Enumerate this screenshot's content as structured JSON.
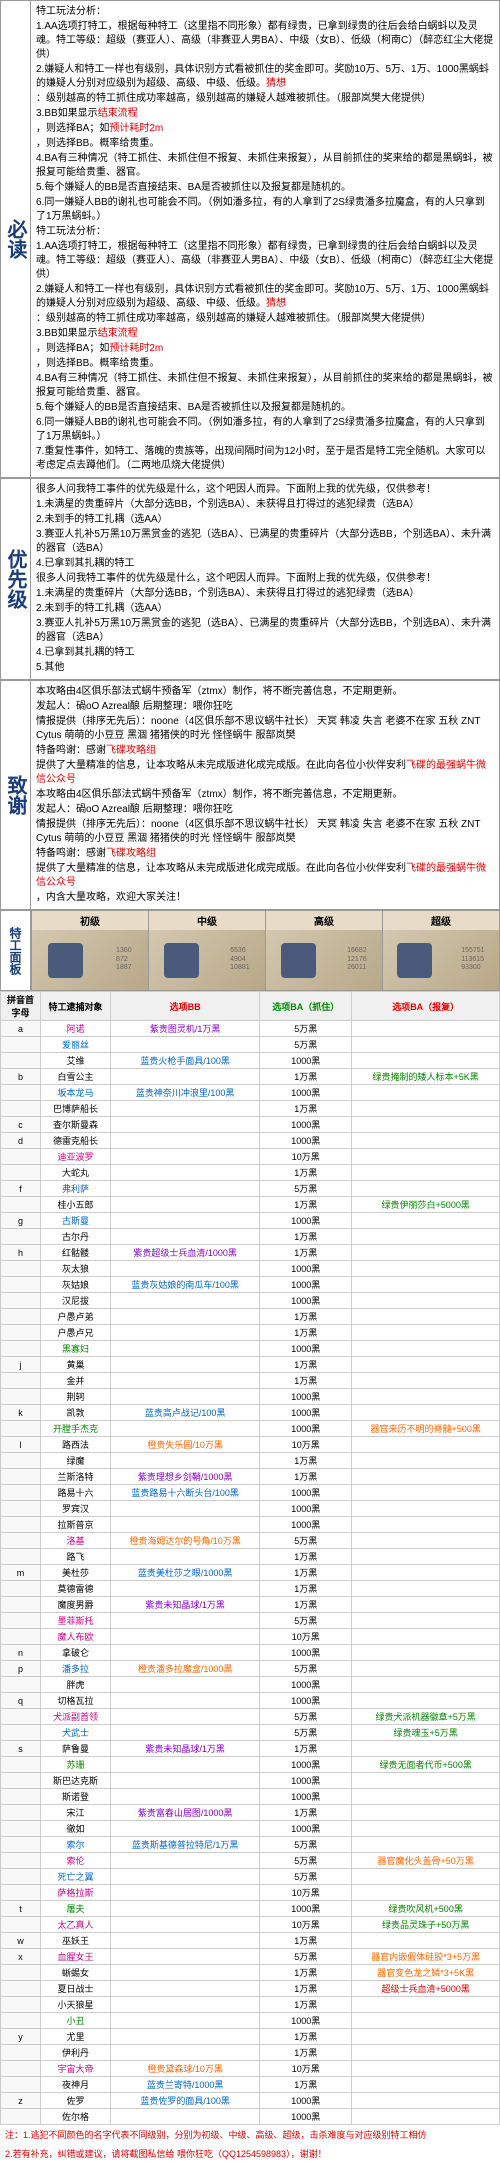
{
  "sections": {
    "bidu": {
      "title": "必读",
      "lines": [
        {
          "t": "特工玩法分析：",
          "c": ""
        },
        {
          "t": "1.AA选项打特工，根据每种特工（这里指不同形象）都有绿贵，已拿到绿贵的往后会给白蜗蚪以及灵魂。特工等级：超级（赛亚人）、高级（非赛亚人男BA）、中级（女B）、低级（柯南C）（醉恋红尘大佬提供）",
          "c": ""
        },
        {
          "t": "2.嫌疑人和特工一样也有级别，具体识别方式看被抓住的奖金即可。奖励10万、5万、1万、1000黑蜗蚪的嫌疑人分别对应级别为超级、高级、中级、低级。",
          "c": ""
        },
        {
          "t": "猜想",
          "c": "red",
          "inline": true
        },
        {
          "t": "：级别越高的特工抓住成功率越高，级别越高的嫌疑人越难被抓住。（服部岚樊大佬提供）",
          "c": ""
        },
        {
          "t": "3.BB如果显示",
          "c": ""
        },
        {
          "t": "结束流程",
          "c": "red",
          "inline": true
        },
        {
          "t": "，则选择BA；如",
          "c": ""
        },
        {
          "t": "预计耗时2m",
          "c": "red",
          "inline": true
        },
        {
          "t": "，则选择BB。概率给贵重。",
          "c": ""
        },
        {
          "t": "4.BA有三种情况（特工抓住、未抓住但不报复、未抓住来报复），从目前抓住的奖来给的都是黑蜗蚪，被报复可能给贵重、器官。",
          "c": ""
        },
        {
          "t": "5.每个嫌疑人的BB是否直接结束、BA是否被抓住以及报复都是随机的。",
          "c": ""
        },
        {
          "t": "6.同一嫌疑人BB的谢礼也可能会不同。（例如潘多拉，有的人拿到了2S绿贵潘多拉魔盒，有的人只拿到了1万黑蜗蚪。）",
          "c": ""
        },
        {
          "t": "7.重复性事件，如特工、落魄的贵族等，出现间隔时间为12小时，至于是否是特工完全随机。大家可以考虑定点去蹲他们。（二两地瓜烧大佬提供）",
          "c": ""
        }
      ]
    },
    "youxianji": {
      "title": "优先级",
      "lines": [
        {
          "t": "很多人问我特工事件的优先级是什么，这个吧因人而异。下面附上我的优先级，仅供参考！",
          "c": ""
        },
        {
          "t": "1.未满星的贵重碎片（大部分选BB，个别选BA）、未获得且打得过的逃犯绿贵（选BA）",
          "c": ""
        },
        {
          "t": "2.未到手的特工扎耦（选AA）",
          "c": ""
        },
        {
          "t": "3.赛亚人扎补5万黑10万黑赏金的逃犯（选BA）、已满星的贵重碎片（大部分选BB，个别选BA）、未升满的器官（选BA）",
          "c": ""
        },
        {
          "t": "4.已拿到其扎耦的特工",
          "c": ""
        },
        {
          "t": "5.其他",
          "c": ""
        }
      ]
    },
    "zhixie": {
      "title": "致谢",
      "lines": [
        {
          "t": "本攻略由4区俱乐部法式蜗牛预备军（ztmx）制作，将不断完善信息，不定期更新。",
          "c": ""
        },
        {
          "t": "发起人：碢oO Azreal酿        后期整理：喂你狂吃",
          "c": ""
        },
        {
          "t": "情报提供（排序无先后）：noone（4区俱乐部不思议蜗牛社长） 天冥 韩凌 失言 老婆不在家 五秋 ZNT Cytus 萌萌的小豆豆 黑涸 猪猪侠的时光 怪怪蜗牛 服部岚樊",
          "c": ""
        },
        {
          "t": "特备鸣谢：感谢",
          "c": ""
        },
        {
          "t": "飞碟攻略组",
          "c": "red",
          "inline": true
        },
        {
          "t": "提供了大量精准的信息，让本攻略从未完成版进化成完成版。在此向各位小伙伴安利",
          "c": ""
        },
        {
          "t": "飞碟的最强蜗牛微信公众号",
          "c": "red",
          "inline": true
        },
        {
          "t": "，内含大量攻略，欢迎大家关注！",
          "c": ""
        }
      ]
    }
  },
  "panel": {
    "title": "特工面板",
    "levels": [
      "初级",
      "中级",
      "高级",
      "超级"
    ],
    "stats": [
      [
        "1360",
        "872",
        "1887"
      ],
      [
        "6536",
        "4904",
        "10881"
      ],
      [
        "16682",
        "12176",
        "26011"
      ],
      [
        "155751",
        "113615",
        "93300"
      ]
    ]
  },
  "table": {
    "headers": [
      "拼音首字母",
      "特工逮捕对象",
      "选项BB",
      "选项BA（抓住）",
      "选项BA（报复）"
    ],
    "headerColors": [
      "",
      "",
      "red",
      "green",
      "red"
    ],
    "rows": [
      {
        "g": "a",
        "n": "阿诺",
        "nc": "pink",
        "bb": "紫贵图灵机/1万黑",
        "bbc": "purple",
        "ba1": "5万黑",
        "ba2": ""
      },
      {
        "g": "",
        "n": "爱丽丝",
        "nc": "blue",
        "bb": "",
        "ba1": "5万黑",
        "ba2": ""
      },
      {
        "g": "",
        "n": "艾维",
        "nc": "",
        "bb": "蓝贵火枪手面具/100黑",
        "bbc": "blue",
        "ba1": "1000黑",
        "ba2": ""
      },
      {
        "g": "b",
        "n": "白雪公主",
        "nc": "",
        "bb": "",
        "ba1": "1万黑",
        "ba2": "绿贵掩制的矮人标本+5K黑",
        "ba2c": "green"
      },
      {
        "g": "",
        "n": "坂本龙马",
        "nc": "blue",
        "bb": "蓝贵神奈川冲浪里/100黑",
        "bbc": "blue",
        "ba1": "1000黑",
        "ba2": ""
      },
      {
        "g": "",
        "n": "巴博萨船长",
        "nc": "",
        "bb": "",
        "ba1": "1万黑",
        "ba2": ""
      },
      {
        "g": "c",
        "n": "查尔斯曼森",
        "nc": "",
        "bb": "",
        "ba1": "1000黑",
        "ba2": ""
      },
      {
        "g": "d",
        "n": "德雷克船长",
        "nc": "",
        "bb": "",
        "ba1": "1000黑",
        "ba2": ""
      },
      {
        "g": "",
        "n": "迪亚波罗",
        "nc": "pink",
        "bb": "",
        "ba1": "10万黑",
        "ba2": ""
      },
      {
        "g": "",
        "n": "大蛇丸",
        "nc": "",
        "bb": "",
        "ba1": "1万黑",
        "ba2": ""
      },
      {
        "g": "f",
        "n": "弗利萨",
        "nc": "blue",
        "bb": "",
        "ba1": "5万黑",
        "ba2": ""
      },
      {
        "g": "",
        "n": "桂小五郎",
        "nc": "",
        "bb": "",
        "ba1": "1万黑",
        "ba2": "绿贵伊丽莎白+5000黑",
        "ba2c": "green"
      },
      {
        "g": "g",
        "n": "古斯曼",
        "nc": "blue",
        "bb": "",
        "ba1": "1000黑",
        "ba2": ""
      },
      {
        "g": "",
        "n": "古尔丹",
        "nc": "",
        "bb": "",
        "ba1": "1万黑",
        "ba2": ""
      },
      {
        "g": "h",
        "n": "红骷髅",
        "nc": "",
        "bb": "紫贵超级士兵血清/1000黑",
        "bbc": "purple",
        "ba1": "1万黑",
        "ba2": ""
      },
      {
        "g": "",
        "n": "灰太狼",
        "nc": "",
        "bb": "",
        "ba1": "1000黑",
        "ba2": ""
      },
      {
        "g": "",
        "n": "灰姑娘",
        "nc": "",
        "bb": "蓝贵灰姑娘的南瓜车/100黑",
        "bbc": "blue",
        "ba1": "1000黑",
        "ba2": ""
      },
      {
        "g": "",
        "n": "汉尼拔",
        "nc": "",
        "bb": "",
        "ba1": "1000黑",
        "ba2": ""
      },
      {
        "g": "",
        "n": "户愚卢弟",
        "nc": "",
        "bb": "",
        "ba1": "1万黑",
        "ba2": ""
      },
      {
        "g": "",
        "n": "户愚卢兄",
        "nc": "",
        "bb": "",
        "ba1": "1万黑",
        "ba2": ""
      },
      {
        "g": "",
        "n": "黑寡妇",
        "nc": "green",
        "bb": "",
        "ba1": "1000黑",
        "ba2": ""
      },
      {
        "g": "j",
        "n": "黄巢",
        "nc": "",
        "bb": "",
        "ba1": "1万黑",
        "ba2": ""
      },
      {
        "g": "",
        "n": "金并",
        "nc": "",
        "bb": "",
        "ba1": "1万黑",
        "ba2": ""
      },
      {
        "g": "",
        "n": "荆轲",
        "nc": "",
        "bb": "",
        "ba1": "1000黑",
        "ba2": ""
      },
      {
        "g": "k",
        "n": "凯敦",
        "nc": "",
        "bb": "蓝贵高卢战记/100黑",
        "bbc": "blue",
        "ba1": "1000黑",
        "ba2": ""
      },
      {
        "g": "",
        "n": "开膛手杰克",
        "nc": "green",
        "bb": "",
        "ba1": "1000黑",
        "ba2": "器官来历不明的脊髓+500黑",
        "ba2c": "orange"
      },
      {
        "g": "l",
        "n": "路西法",
        "nc": "",
        "bb": "橙贵失乐园/10万黑",
        "bbc": "orange",
        "ba1": "10万黑",
        "ba2": ""
      },
      {
        "g": "",
        "n": "绿魔",
        "nc": "",
        "bb": "",
        "ba1": "1万黑",
        "ba2": ""
      },
      {
        "g": "",
        "n": "兰斯洛特",
        "nc": "",
        "bb": "紫贵理想乡剑鞘/1000黑",
        "bbc": "purple",
        "ba1": "1万黑",
        "ba2": ""
      },
      {
        "g": "",
        "n": "路易十六",
        "nc": "",
        "bb": "蓝贵路易十六断头台/100黑",
        "bbc": "blue",
        "ba1": "1000黑",
        "ba2": ""
      },
      {
        "g": "",
        "n": "罗宾汉",
        "nc": "",
        "bb": "",
        "ba1": "1000黑",
        "ba2": ""
      },
      {
        "g": "",
        "n": "拉斯普京",
        "nc": "",
        "bb": "",
        "ba1": "1000黑",
        "ba2": ""
      },
      {
        "g": "",
        "n": "洛基",
        "nc": "pink",
        "bb": "橙贵海姆达尔的号角/10万黑",
        "bbc": "orange",
        "ba1": "5万黑",
        "ba2": ""
      },
      {
        "g": "",
        "n": "路飞",
        "nc": "",
        "bb": "",
        "ba1": "1万黑",
        "ba2": ""
      },
      {
        "g": "m",
        "n": "美杜莎",
        "nc": "",
        "bb": "蓝贵美杜莎之眼/1000黑",
        "bbc": "blue",
        "ba1": "1万黑",
        "ba2": ""
      },
      {
        "g": "",
        "n": "莫德雷德",
        "nc": "",
        "bb": "",
        "ba1": "1万黑",
        "ba2": ""
      },
      {
        "g": "",
        "n": "魔度男爵",
        "nc": "",
        "bb": "紫贵未知晶球/1万黑",
        "bbc": "purple",
        "ba1": "1万黑",
        "ba2": ""
      },
      {
        "g": "",
        "n": "墨菲斯托",
        "nc": "pink",
        "bb": "",
        "ba1": "5万黑",
        "ba2": ""
      },
      {
        "g": "",
        "n": "魔人布欧",
        "nc": "pink",
        "bb": "",
        "ba1": "10万黑",
        "ba2": ""
      },
      {
        "g": "n",
        "n": "拿破仑",
        "nc": "",
        "bb": "",
        "ba1": "1000黑",
        "ba2": ""
      },
      {
        "g": "p",
        "n": "潘多拉",
        "nc": "blue",
        "bb": "橙贵潘多拉魔盒/1000黑",
        "bbc": "orange",
        "ba1": "5万黑",
        "ba2": ""
      },
      {
        "g": "",
        "n": "胖虎",
        "nc": "",
        "bb": "",
        "ba1": "1000黑",
        "ba2": ""
      },
      {
        "g": "q",
        "n": "切格瓦拉",
        "nc": "",
        "bb": "",
        "ba1": "1000黑",
        "ba2": ""
      },
      {
        "g": "",
        "n": "犬派副首领",
        "nc": "pink",
        "bb": "",
        "ba1": "5万黑",
        "ba2": "绿贵犬派机器徽章+5万黑",
        "ba2c": "green"
      },
      {
        "g": "",
        "n": "犬武士",
        "nc": "blue",
        "bb": "",
        "ba1": "5万黑",
        "ba2": "绿贵魂玉+5万黑",
        "ba2c": "green"
      },
      {
        "g": "s",
        "n": "萨鲁曼",
        "nc": "",
        "bb": "紫贵未知晶球/1万黑",
        "bbc": "purple",
        "ba1": "1万黑",
        "ba2": ""
      },
      {
        "g": "",
        "n": "苏珊",
        "nc": "green",
        "bb": "",
        "ba1": "1000黑",
        "ba2": "绿贵无面者代币+500黑",
        "ba2c": "green"
      },
      {
        "g": "",
        "n": "斯巴达克斯",
        "nc": "",
        "bb": "",
        "ba1": "1000黑",
        "ba2": ""
      },
      {
        "g": "",
        "n": "斯诺登",
        "nc": "",
        "bb": "",
        "ba1": "1000黑",
        "ba2": ""
      },
      {
        "g": "",
        "n": "宋江",
        "nc": "",
        "bb": "紫贵富春山居图/1000黑",
        "bbc": "purple",
        "ba1": "1万黑",
        "ba2": ""
      },
      {
        "g": "",
        "n": "徹如",
        "nc": "",
        "bb": "",
        "ba1": "1000黑",
        "ba2": ""
      },
      {
        "g": "",
        "n": "索尔",
        "nc": "blue",
        "bb": "蓝贵斯基德普拉特尼/1万黑",
        "bbc": "blue",
        "ba1": "5万黑",
        "ba2": ""
      },
      {
        "g": "",
        "n": "索伦",
        "nc": "pink",
        "bb": "",
        "ba1": "5万黑",
        "ba2": "器官魔化头盖骨+50万黑",
        "ba2c": "orange"
      },
      {
        "g": "",
        "n": "死亡之翼",
        "nc": "blue",
        "bb": "",
        "ba1": "5万黑",
        "ba2": ""
      },
      {
        "g": "",
        "n": "萨格拉斯",
        "nc": "pink",
        "bb": "",
        "ba1": "10万黑",
        "ba2": ""
      },
      {
        "g": "t",
        "n": "屠夫",
        "nc": "green",
        "bb": "",
        "ba1": "1000黑",
        "ba2": "绿贵吹风机+500黑",
        "ba2c": "green"
      },
      {
        "g": "",
        "n": "太乙真人",
        "nc": "pink",
        "bb": "",
        "ba1": "10万黑",
        "ba2": "绿贵品灵珠子+50万黑",
        "ba2c": "green"
      },
      {
        "g": "w",
        "n": "巫妖王",
        "nc": "",
        "bb": "",
        "ba1": "1万黑",
        "ba2": ""
      },
      {
        "g": "x",
        "n": "血腥女王",
        "nc": "pink",
        "bb": "",
        "ba1": "5万黑",
        "ba2": "器官内嵌假体硅胶*3+5万黑",
        "ba2c": "orange"
      },
      {
        "g": "",
        "n": "蜥蜴女",
        "nc": "",
        "bb": "",
        "ba1": "1万黑",
        "ba2": "器官变色龙之鳞*3+5K黑",
        "ba2c": "orange"
      },
      {
        "g": "",
        "n": "夏日战士",
        "nc": "",
        "bb": "",
        "ba1": "1万黑",
        "ba2": "超级士兵血清+5000黑",
        "ba2c": "red"
      },
      {
        "g": "",
        "n": "小天狼星",
        "nc": "",
        "bb": "",
        "ba1": "1万黑",
        "ba2": ""
      },
      {
        "g": "",
        "n": "小丑",
        "nc": "green",
        "bb": "",
        "ba1": "1000黑",
        "ba2": ""
      },
      {
        "g": "y",
        "n": "尤里",
        "nc": "",
        "bb": "",
        "ba1": "1万黑",
        "ba2": ""
      },
      {
        "g": "",
        "n": "伊利丹",
        "nc": "",
        "bb": "",
        "ba1": "1万黑",
        "ba2": ""
      },
      {
        "g": "",
        "n": "宇宙大帝",
        "nc": "pink",
        "bb": "橙贵黛森球/10万黑",
        "bbc": "orange",
        "ba1": "10万黑",
        "ba2": ""
      },
      {
        "g": "",
        "n": "夜神月",
        "nc": "",
        "bb": "蓝贵兰寄特/1000黑",
        "bbc": "blue",
        "ba1": "1万黑",
        "ba2": ""
      },
      {
        "g": "z",
        "n": "佐罗",
        "nc": "",
        "bb": "蓝贵佐罗的面具/100黑",
        "bbc": "blue",
        "ba1": "1000黑",
        "ba2": ""
      },
      {
        "g": "",
        "n": "佐尔格",
        "nc": "",
        "bb": "",
        "ba1": "1000黑",
        "ba2": ""
      }
    ]
  },
  "notes": [
    "注：1.逃犯不同颜色的名字代表不同级别，分别为初级、中级、高级、超级，击杀难度与对应级别特工相仿",
    "2.若有补充，纠错或建议，请将截图私信给 喂你狂吃（QQ1254598983），谢谢！"
  ]
}
